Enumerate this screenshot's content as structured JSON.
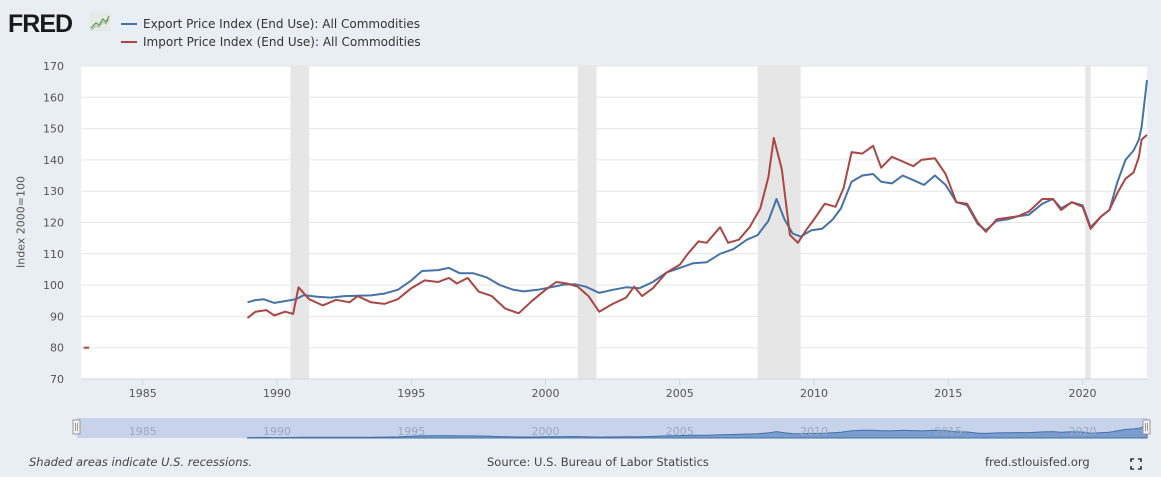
{
  "header": {
    "logo_text": "FRED",
    "logo_icon": "chart-line-icon"
  },
  "footer": {
    "recession_note": "Shaded areas indicate U.S. recessions.",
    "source": "Source: U.S. Bureau of Labor Statistics",
    "site": "fred.stlouisfed.org",
    "fullscreen_icon": "fullscreen-icon"
  },
  "colors": {
    "export": "#4572a7",
    "import": "#aa4643",
    "recession": "#e6e6e6",
    "background": "#e8eef4"
  },
  "chart_data": {
    "type": "line",
    "title": "",
    "xlabel": "",
    "ylabel": "Index 2000=100",
    "xlim": [
      1982.7,
      2022.4
    ],
    "ylim": [
      70,
      170
    ],
    "yticks": [
      70,
      80,
      90,
      100,
      110,
      120,
      130,
      140,
      150,
      160,
      170
    ],
    "xticks": [
      1985,
      1990,
      1995,
      2000,
      2005,
      2010,
      2015,
      2020
    ],
    "grid": true,
    "legend_placement": "top-left",
    "recessions": [
      [
        1990.5,
        1991.2
      ],
      [
        2001.2,
        2001.9
      ],
      [
        2007.9,
        2009.5
      ],
      [
        2020.1,
        2020.3
      ]
    ],
    "series": [
      {
        "name": "Export Price Index (End Use): All Commodities",
        "color": "#4572a7",
        "points": [
          [
            1988.9,
            94.5
          ],
          [
            1989.2,
            95.2
          ],
          [
            1989.5,
            95.5
          ],
          [
            1989.9,
            94.3
          ],
          [
            1990.3,
            94.9
          ],
          [
            1990.7,
            95.5
          ],
          [
            1991.0,
            96.8
          ],
          [
            1991.5,
            96.3
          ],
          [
            1992.0,
            96.0
          ],
          [
            1992.5,
            96.5
          ],
          [
            1993.0,
            96.6
          ],
          [
            1993.5,
            96.7
          ],
          [
            1994.0,
            97.3
          ],
          [
            1994.5,
            98.5
          ],
          [
            1995.0,
            101.5
          ],
          [
            1995.4,
            104.5
          ],
          [
            1996.0,
            104.8
          ],
          [
            1996.4,
            105.5
          ],
          [
            1996.8,
            103.8
          ],
          [
            1997.3,
            103.8
          ],
          [
            1997.8,
            102.5
          ],
          [
            1998.3,
            100.0
          ],
          [
            1998.8,
            98.5
          ],
          [
            1999.2,
            98.0
          ],
          [
            1999.7,
            98.5
          ],
          [
            2000.2,
            99.3
          ],
          [
            2000.7,
            100.2
          ],
          [
            2001.1,
            100.3
          ],
          [
            2001.5,
            99.5
          ],
          [
            2002.0,
            97.5
          ],
          [
            2002.5,
            98.5
          ],
          [
            2003.0,
            99.3
          ],
          [
            2003.5,
            99.0
          ],
          [
            2004.0,
            101.0
          ],
          [
            2004.5,
            104.0
          ],
          [
            2005.0,
            105.5
          ],
          [
            2005.5,
            107.0
          ],
          [
            2006.0,
            107.3
          ],
          [
            2006.5,
            110.0
          ],
          [
            2007.0,
            111.5
          ],
          [
            2007.5,
            114.5
          ],
          [
            2007.9,
            116.0
          ],
          [
            2008.3,
            120.5
          ],
          [
            2008.6,
            127.5
          ],
          [
            2008.9,
            121.0
          ],
          [
            2009.2,
            116.5
          ],
          [
            2009.5,
            115.5
          ],
          [
            2009.9,
            117.5
          ],
          [
            2010.3,
            118.0
          ],
          [
            2010.7,
            121.0
          ],
          [
            2011.0,
            124.5
          ],
          [
            2011.4,
            133.0
          ],
          [
            2011.8,
            135.0
          ],
          [
            2012.2,
            135.5
          ],
          [
            2012.5,
            133.0
          ],
          [
            2012.9,
            132.5
          ],
          [
            2013.3,
            135.0
          ],
          [
            2013.7,
            133.5
          ],
          [
            2014.1,
            132.0
          ],
          [
            2014.5,
            135.0
          ],
          [
            2014.9,
            132.0
          ],
          [
            2015.3,
            126.5
          ],
          [
            2015.7,
            125.5
          ],
          [
            2016.1,
            119.5
          ],
          [
            2016.4,
            117.5
          ],
          [
            2016.8,
            120.5
          ],
          [
            2017.2,
            121.0
          ],
          [
            2017.6,
            122.0
          ],
          [
            2018.0,
            122.5
          ],
          [
            2018.5,
            126.0
          ],
          [
            2018.9,
            127.5
          ],
          [
            2019.2,
            124.5
          ],
          [
            2019.6,
            126.5
          ],
          [
            2020.0,
            125.5
          ],
          [
            2020.3,
            118.5
          ],
          [
            2020.7,
            122.0
          ],
          [
            2021.0,
            124.0
          ],
          [
            2021.3,
            133.0
          ],
          [
            2021.6,
            140.0
          ],
          [
            2021.9,
            143.0
          ],
          [
            2022.1,
            146.5
          ],
          [
            2022.2,
            150.5
          ],
          [
            2022.4,
            165.5
          ]
        ]
      },
      {
        "name": "Import Price Index (End Use): All Commodities",
        "color": "#aa4643",
        "points": [
          [
            1982.8,
            80.0
          ],
          [
            1983.0,
            80.0
          ],
          [
            1988.9,
            89.5
          ],
          [
            1989.2,
            91.5
          ],
          [
            1989.6,
            92.0
          ],
          [
            1989.9,
            90.3
          ],
          [
            1990.3,
            91.5
          ],
          [
            1990.6,
            90.8
          ],
          [
            1990.8,
            99.3
          ],
          [
            1991.2,
            95.5
          ],
          [
            1991.7,
            93.5
          ],
          [
            1992.2,
            95.3
          ],
          [
            1992.7,
            94.5
          ],
          [
            1993.0,
            96.5
          ],
          [
            1993.5,
            94.5
          ],
          [
            1994.0,
            94.0
          ],
          [
            1994.5,
            95.5
          ],
          [
            1995.0,
            99.0
          ],
          [
            1995.5,
            101.5
          ],
          [
            1996.0,
            101.0
          ],
          [
            1996.4,
            102.3
          ],
          [
            1996.7,
            100.5
          ],
          [
            1997.1,
            102.3
          ],
          [
            1997.5,
            98.0
          ],
          [
            1998.0,
            96.5
          ],
          [
            1998.5,
            92.5
          ],
          [
            1999.0,
            91.0
          ],
          [
            1999.5,
            95.0
          ],
          [
            2000.0,
            98.5
          ],
          [
            2000.4,
            101.0
          ],
          [
            2000.8,
            100.5
          ],
          [
            2001.2,
            99.5
          ],
          [
            2001.6,
            96.5
          ],
          [
            2002.0,
            91.5
          ],
          [
            2002.5,
            94.0
          ],
          [
            2003.0,
            96.0
          ],
          [
            2003.3,
            99.5
          ],
          [
            2003.6,
            96.5
          ],
          [
            2004.0,
            99.0
          ],
          [
            2004.5,
            104.0
          ],
          [
            2005.0,
            106.5
          ],
          [
            2005.3,
            110.0
          ],
          [
            2005.7,
            114.0
          ],
          [
            2006.0,
            113.5
          ],
          [
            2006.5,
            118.5
          ],
          [
            2006.8,
            113.5
          ],
          [
            2007.2,
            114.5
          ],
          [
            2007.6,
            118.5
          ],
          [
            2008.0,
            124.5
          ],
          [
            2008.3,
            134.5
          ],
          [
            2008.5,
            147.0
          ],
          [
            2008.8,
            137.0
          ],
          [
            2009.1,
            116.0
          ],
          [
            2009.4,
            113.5
          ],
          [
            2009.7,
            117.5
          ],
          [
            2010.0,
            121.0
          ],
          [
            2010.4,
            126.0
          ],
          [
            2010.8,
            125.0
          ],
          [
            2011.1,
            131.0
          ],
          [
            2011.4,
            142.5
          ],
          [
            2011.8,
            142.0
          ],
          [
            2012.2,
            144.5
          ],
          [
            2012.5,
            137.5
          ],
          [
            2012.9,
            141.0
          ],
          [
            2013.3,
            139.5
          ],
          [
            2013.7,
            138.0
          ],
          [
            2014.0,
            140.0
          ],
          [
            2014.5,
            140.5
          ],
          [
            2014.9,
            135.5
          ],
          [
            2015.3,
            126.5
          ],
          [
            2015.7,
            126.0
          ],
          [
            2016.1,
            120.0
          ],
          [
            2016.4,
            117.0
          ],
          [
            2016.8,
            121.0
          ],
          [
            2017.2,
            121.5
          ],
          [
            2017.6,
            122.0
          ],
          [
            2018.0,
            123.5
          ],
          [
            2018.5,
            127.5
          ],
          [
            2018.9,
            127.5
          ],
          [
            2019.2,
            124.0
          ],
          [
            2019.6,
            126.5
          ],
          [
            2020.0,
            125.0
          ],
          [
            2020.3,
            118.0
          ],
          [
            2020.7,
            122.0
          ],
          [
            2021.0,
            124.0
          ],
          [
            2021.3,
            129.5
          ],
          [
            2021.6,
            134.0
          ],
          [
            2021.9,
            136.0
          ],
          [
            2022.1,
            141.0
          ],
          [
            2022.2,
            146.5
          ],
          [
            2022.4,
            148.0
          ]
        ]
      }
    ],
    "navigator": {
      "xticks": [
        1985,
        1990,
        1995,
        2000,
        2005,
        2010,
        2015,
        2020
      ],
      "range": [
        1982.7,
        2022.4
      ]
    }
  }
}
